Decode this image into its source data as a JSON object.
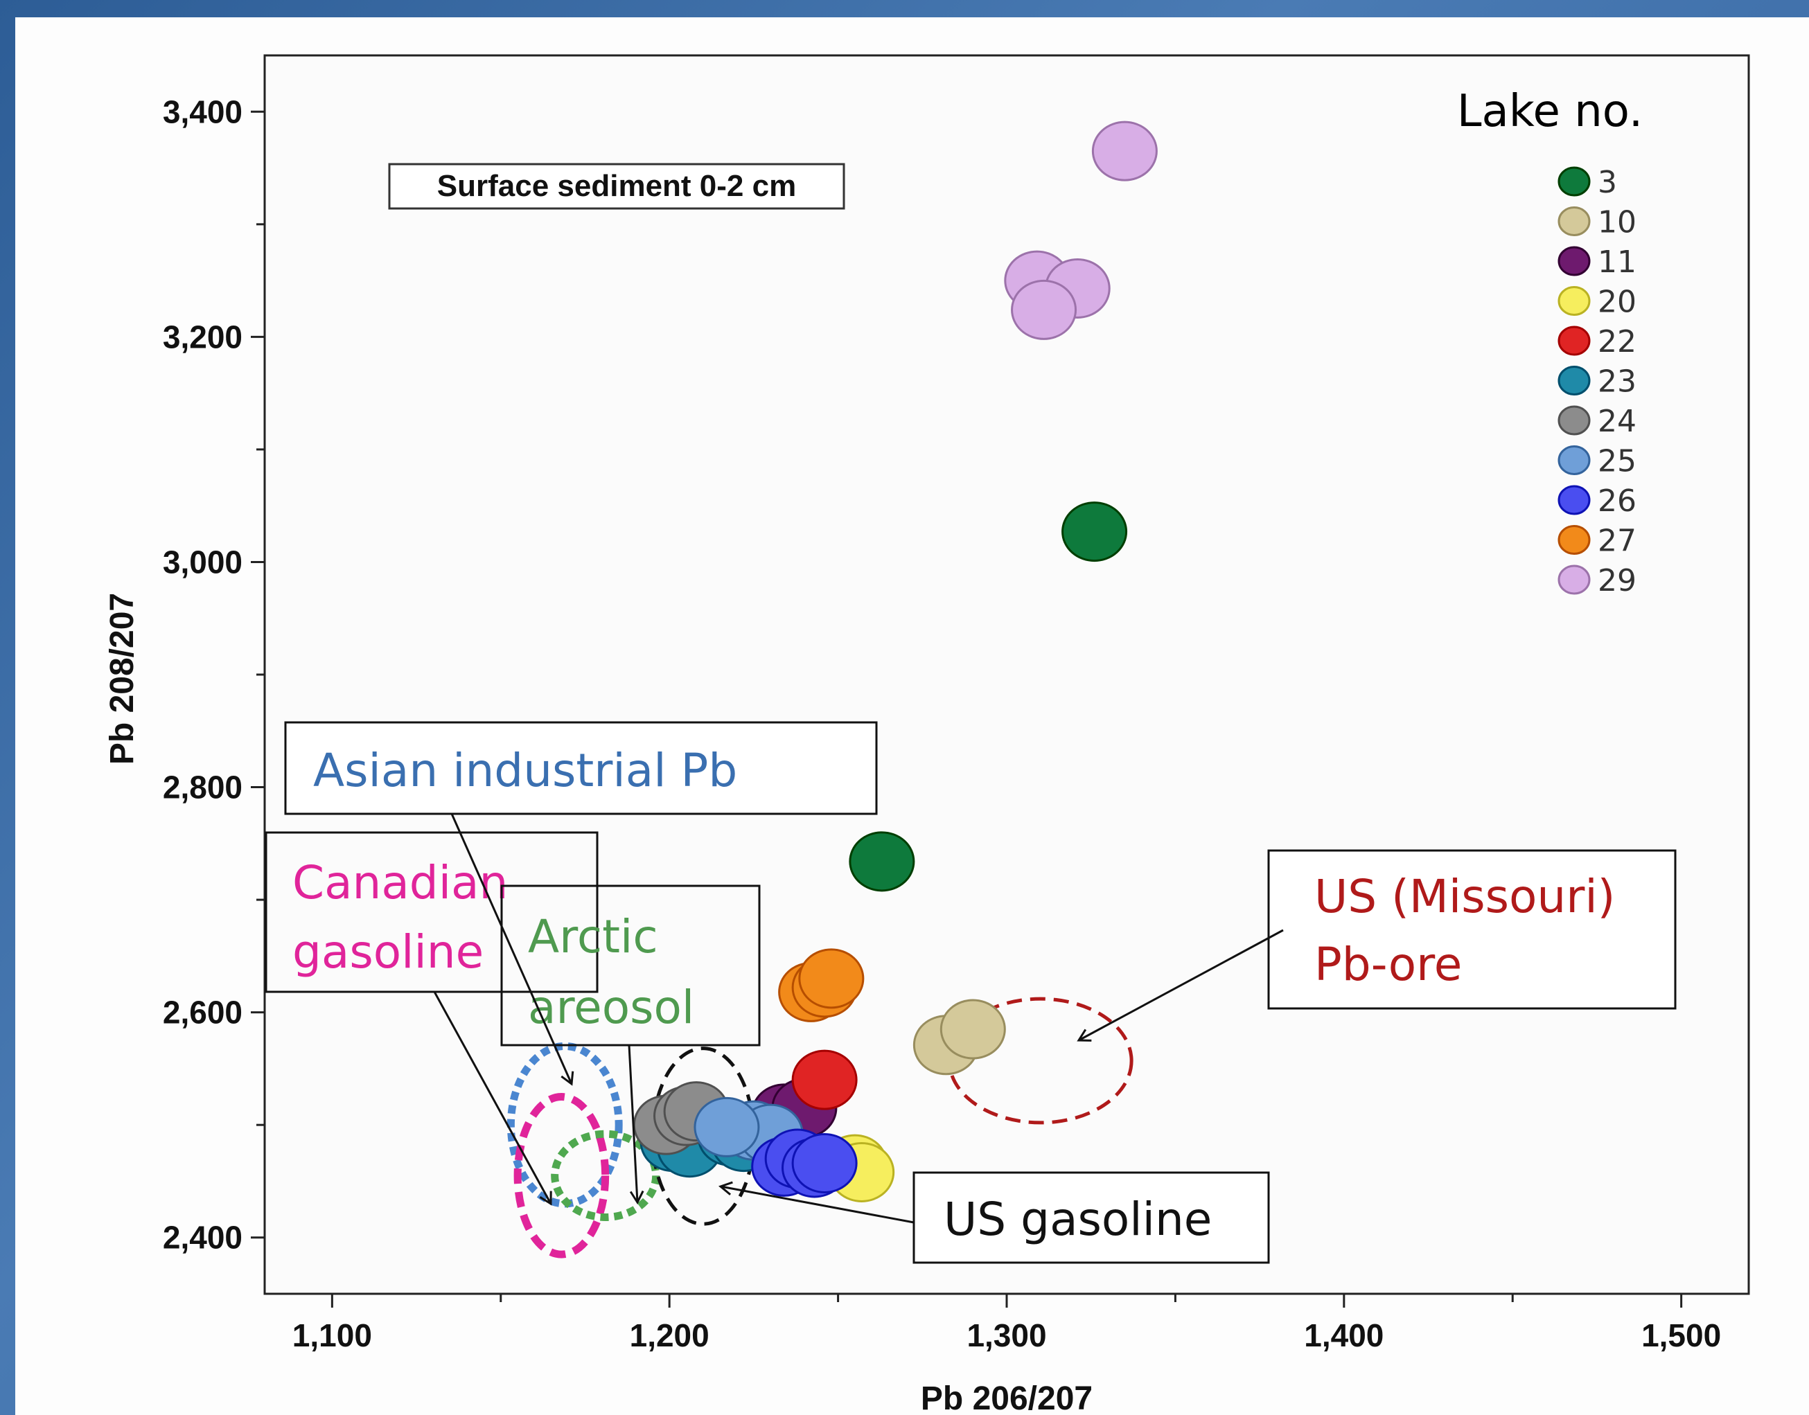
{
  "chart_data": {
    "type": "scatter",
    "title": "Surface sediment 0-2 cm",
    "xlabel": "Pb 206/207",
    "ylabel": "Pb 208/207",
    "xlim": [
      1.08,
      1.52
    ],
    "ylim": [
      2.35,
      3.45
    ],
    "xticks": [
      "1,100",
      "1,200",
      "1,300",
      "1,400",
      "1,500"
    ],
    "yticks": [
      "2,400",
      "2,600",
      "2,800",
      "3,000",
      "3,200",
      "3,400"
    ],
    "legend_title": "Lake no.",
    "legend_position": "top-right",
    "grid": false,
    "series": [
      {
        "name": "3",
        "color": "#0e7a3c",
        "points": [
          [
            1.326,
            3.027
          ],
          [
            1.263,
            2.734
          ]
        ]
      },
      {
        "name": "10",
        "color": "#d4c99a",
        "points": [
          [
            1.282,
            2.571
          ],
          [
            1.29,
            2.585
          ]
        ]
      },
      {
        "name": "11",
        "color": "#6e1a6e",
        "points": [
          [
            1.234,
            2.51
          ],
          [
            1.24,
            2.515
          ]
        ]
      },
      {
        "name": "20",
        "color": "#f6ee5e",
        "points": [
          [
            1.255,
            2.465
          ],
          [
            1.257,
            2.458
          ]
        ]
      },
      {
        "name": "22",
        "color": "#e02424",
        "points": [
          [
            1.246,
            2.54
          ]
        ]
      },
      {
        "name": "23",
        "color": "#1f8aa8",
        "points": [
          [
            1.201,
            2.485
          ],
          [
            1.206,
            2.48
          ],
          [
            1.218,
            2.49
          ],
          [
            1.222,
            2.485
          ]
        ]
      },
      {
        "name": "24",
        "color": "#8c8c8c",
        "points": [
          [
            1.199,
            2.5
          ],
          [
            1.205,
            2.508
          ],
          [
            1.208,
            2.512
          ]
        ]
      },
      {
        "name": "25",
        "color": "#6f9fd8",
        "points": [
          [
            1.225,
            2.495
          ],
          [
            1.23,
            2.492
          ],
          [
            1.217,
            2.498
          ]
        ]
      },
      {
        "name": "26",
        "color": "#4a4ef0",
        "points": [
          [
            1.234,
            2.463
          ],
          [
            1.238,
            2.47
          ],
          [
            1.243,
            2.462
          ],
          [
            1.246,
            2.466
          ]
        ]
      },
      {
        "name": "27",
        "color": "#f28a1a",
        "points": [
          [
            1.242,
            2.618
          ],
          [
            1.246,
            2.622
          ],
          [
            1.248,
            2.63
          ]
        ]
      },
      {
        "name": "29",
        "color": "#d8aee6",
        "points": [
          [
            1.335,
            3.365
          ],
          [
            1.309,
            3.25
          ],
          [
            1.321,
            3.243
          ],
          [
            1.311,
            3.224
          ]
        ]
      }
    ],
    "source_regions": [
      {
        "label": "Asian industrial Pb",
        "color": "#4a86d0",
        "style": "dotted",
        "cx": 1.169,
        "cy": 2.5,
        "rx": 0.016,
        "ry": 0.07
      },
      {
        "label": "Canadian gasoline",
        "color": "#e0249a",
        "style": "dashed",
        "cx": 1.168,
        "cy": 2.455,
        "rx": 0.013,
        "ry": 0.07
      },
      {
        "label": "Arctic areosol",
        "color": "#4fa84f",
        "style": "dotted",
        "cx": 1.181,
        "cy": 2.455,
        "rx": 0.015,
        "ry": 0.037
      },
      {
        "label": "US gasoline",
        "color": "#111111",
        "style": "dashed",
        "cx": 1.21,
        "cy": 2.49,
        "rx": 0.015,
        "ry": 0.078
      },
      {
        "label": "US (Missouri) Pb-ore",
        "color": "#b01a1a",
        "style": "dashed",
        "cx": 1.31,
        "cy": 2.557,
        "rx": 0.027,
        "ry": 0.055
      }
    ]
  },
  "annotations": {
    "asian": {
      "text": "Asian industrial Pb",
      "color": "#3a6fb0"
    },
    "canadian": {
      "line1": "Canadian",
      "line2": "gasoline",
      "color": "#e0249a"
    },
    "arctic": {
      "line1": "Arctic",
      "line2": "areosol",
      "color": "#4f9a4f"
    },
    "us_gasoline": {
      "text": "US gasoline",
      "color": "#111111"
    },
    "missouri": {
      "line1": "US (Missouri)",
      "line2": "Pb-ore",
      "color": "#b01a1a"
    }
  }
}
